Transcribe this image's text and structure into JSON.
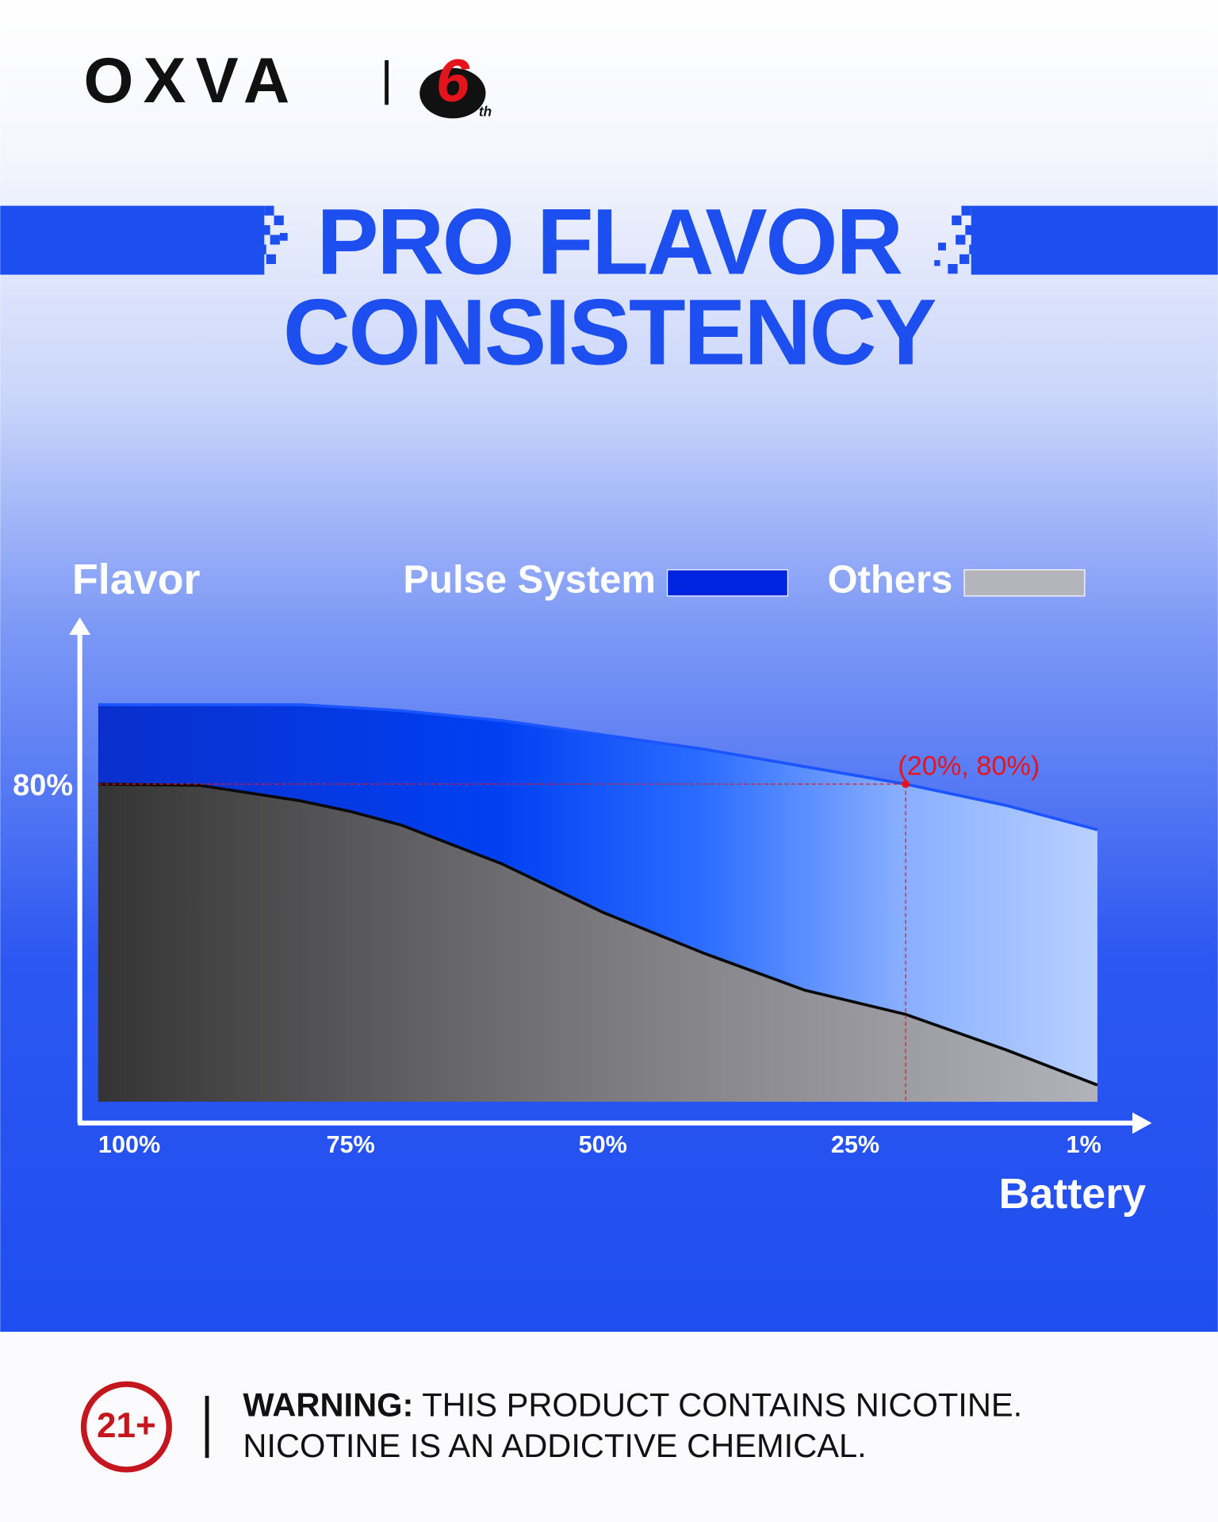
{
  "brand": {
    "name": "OXVA",
    "badge_number": "6",
    "badge_suffix": "th"
  },
  "chart_data": {
    "type": "area",
    "title": "PRO FLAVOR",
    "subtitle": "CONSISTENCY",
    "ylabel": "Flavor",
    "xlabel": "Battery",
    "x": [
      100,
      90,
      80,
      75,
      70,
      60,
      50,
      40,
      30,
      20,
      10,
      1
    ],
    "series": [
      {
        "name": "Pulse System",
        "color": "#0025e0",
        "values": [
          100,
          100,
          100,
          99.3,
          98.5,
          96,
          92.4,
          88.8,
          84.4,
          80,
          74.6,
          68.5
        ]
      },
      {
        "name": "Others",
        "color": "#b4b4bc",
        "values": [
          80,
          79.7,
          75.8,
          73.1,
          69.7,
          59.9,
          47.7,
          37.4,
          28.1,
          22,
          13,
          4.2
        ]
      }
    ],
    "xlim": [
      100,
      1
    ],
    "xticks": [
      {
        "value": 100,
        "label": "100%"
      },
      {
        "value": 75,
        "label": "75%"
      },
      {
        "value": 50,
        "label": "50%"
      },
      {
        "value": 25,
        "label": "25%"
      },
      {
        "value": 1,
        "label": "1%"
      }
    ],
    "ylim": [
      0,
      100
    ],
    "yticks": [
      {
        "value": 80,
        "label": "80%"
      }
    ],
    "annotations": [
      {
        "text": "(20%, 80%)",
        "x": 20,
        "y": 80,
        "color": "#e8141c"
      }
    ],
    "grid": false
  },
  "warning": {
    "age_badge": "21+",
    "label": "WARNING:",
    "line1": " THIS PRODUCT CONTAINS NICOTINE.",
    "line2": "NICOTINE IS AN ADDICTIVE CHEMICAL."
  }
}
